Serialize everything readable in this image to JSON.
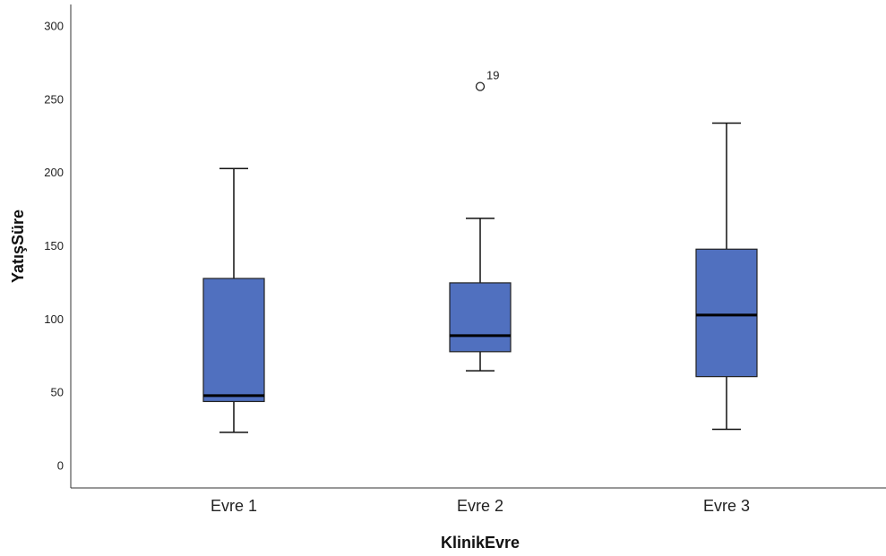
{
  "chart_data": {
    "type": "box",
    "xlabel": "KlinikEvre",
    "ylabel": "YatışSüre",
    "ylim": [
      -15,
      315
    ],
    "yticks": [
      0,
      50,
      100,
      150,
      200,
      250,
      300
    ],
    "categories": [
      "Evre 1",
      "Evre 2",
      "Evre 3"
    ],
    "boxes": [
      {
        "category": "Evre 1",
        "min": 23,
        "q1": 44,
        "median": 48,
        "q3": 128,
        "max": 203
      },
      {
        "category": "Evre 2",
        "min": 65,
        "q1": 78,
        "median": 89,
        "q3": 125,
        "max": 169,
        "outliers": [
          {
            "value": 259,
            "label": "19"
          }
        ]
      },
      {
        "category": "Evre 3",
        "min": 25,
        "q1": 61,
        "median": 103,
        "q3": 148,
        "max": 234
      }
    ],
    "box_color": "#5070BF",
    "grid": false
  }
}
